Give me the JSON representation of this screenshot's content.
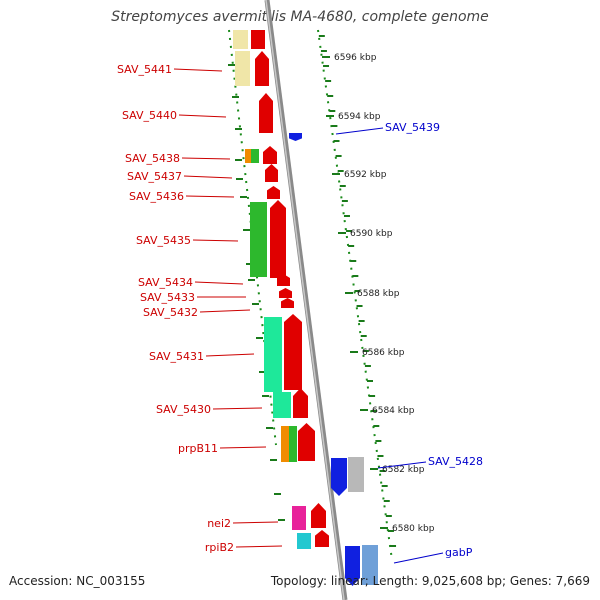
{
  "title": "Streptomyces avermitilis MA-4680, complete genome",
  "footer": {
    "accession": "Accession: NC_003155",
    "summary": "Topology: linear; Length: 9,025,608 bp; Genes: 7,669"
  },
  "scale_labels": [
    "6596 kbp",
    "6594 kbp",
    "6592 kbp",
    "6590 kbp",
    "6588 kbp",
    "6586 kbp",
    "6584 kbp",
    "6582 kbp",
    "6580 kbp"
  ],
  "left_genes": [
    "SAV_5441",
    "SAV_5440",
    "SAV_5438",
    "SAV_5437",
    "SAV_5436",
    "SAV_5435",
    "SAV_5434",
    "SAV_5433",
    "SAV_5432",
    "SAV_5431",
    "SAV_5430",
    "prpB11",
    "nei2",
    "rpiB2"
  ],
  "right_genes": [
    "SAV_5439",
    "SAV_5428",
    "gabP"
  ],
  "colors": {
    "left_label": "#cc0000",
    "right_label": "#0000cc",
    "gene_red": "#e00000",
    "gene_blue": "#1020e0",
    "scale_green": "#1a7a1a",
    "axis": "#888888"
  }
}
